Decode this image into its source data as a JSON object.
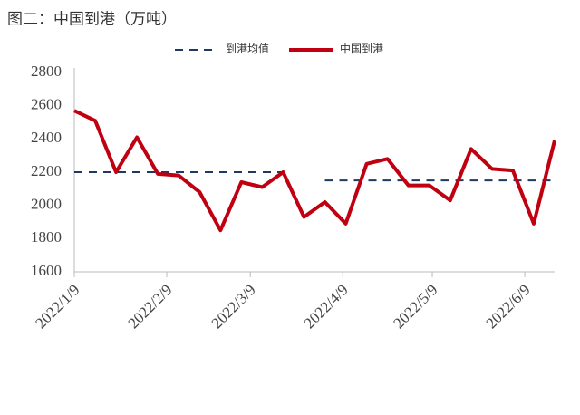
{
  "chart_data": {
    "type": "line",
    "title": "图二：中国到港（万吨）",
    "x": [
      "2022-01-09",
      "2022-01-16",
      "2022-01-23",
      "2022-01-30",
      "2022-02-06",
      "2022-02-13",
      "2022-02-20",
      "2022-02-27",
      "2022-03-06",
      "2022-03-13",
      "2022-03-20",
      "2022-03-27",
      "2022-04-03",
      "2022-04-10",
      "2022-04-17",
      "2022-04-24",
      "2022-05-01",
      "2022-05-08",
      "2022-05-15",
      "2022-05-22",
      "2022-05-29",
      "2022-06-05",
      "2022-06-12",
      "2022-06-19"
    ],
    "series": [
      {
        "name": "到港均值",
        "color": "#1f3864",
        "dash": true,
        "values": [
          2200,
          2200,
          2200,
          2200,
          2200,
          2200,
          2200,
          2200,
          2200,
          2200,
          2200,
          null,
          2150,
          2150,
          2150,
          2150,
          2150,
          2150,
          2150,
          2150,
          2150,
          2150,
          2150,
          2150
        ]
      },
      {
        "name": "中国到港",
        "color": "#c00010",
        "dash": false,
        "values": [
          2570,
          2510,
          2200,
          2410,
          2190,
          2180,
          2080,
          1850,
          2140,
          2110,
          2200,
          1930,
          2020,
          1890,
          2250,
          2280,
          2120,
          2120,
          2030,
          2340,
          2220,
          2210,
          1890,
          2390
        ]
      }
    ],
    "xlim": [
      "2022-01-09",
      "2022-06-19"
    ],
    "xticks": [
      {
        "value": "2022-01-09",
        "label": "2022/1/9"
      },
      {
        "value": "2022-02-09",
        "label": "2022/2/9"
      },
      {
        "value": "2022-03-09",
        "label": "2022/3/9"
      },
      {
        "value": "2022-04-09",
        "label": "2022/4/9"
      },
      {
        "value": "2022-05-09",
        "label": "2022/5/9"
      },
      {
        "value": "2022-06-09",
        "label": "2022/6/9"
      }
    ],
    "ylim": [
      1600,
      2800
    ],
    "yticks": [
      1600,
      1800,
      2000,
      2200,
      2400,
      2600,
      2800
    ],
    "grid": false,
    "legend": "top"
  }
}
